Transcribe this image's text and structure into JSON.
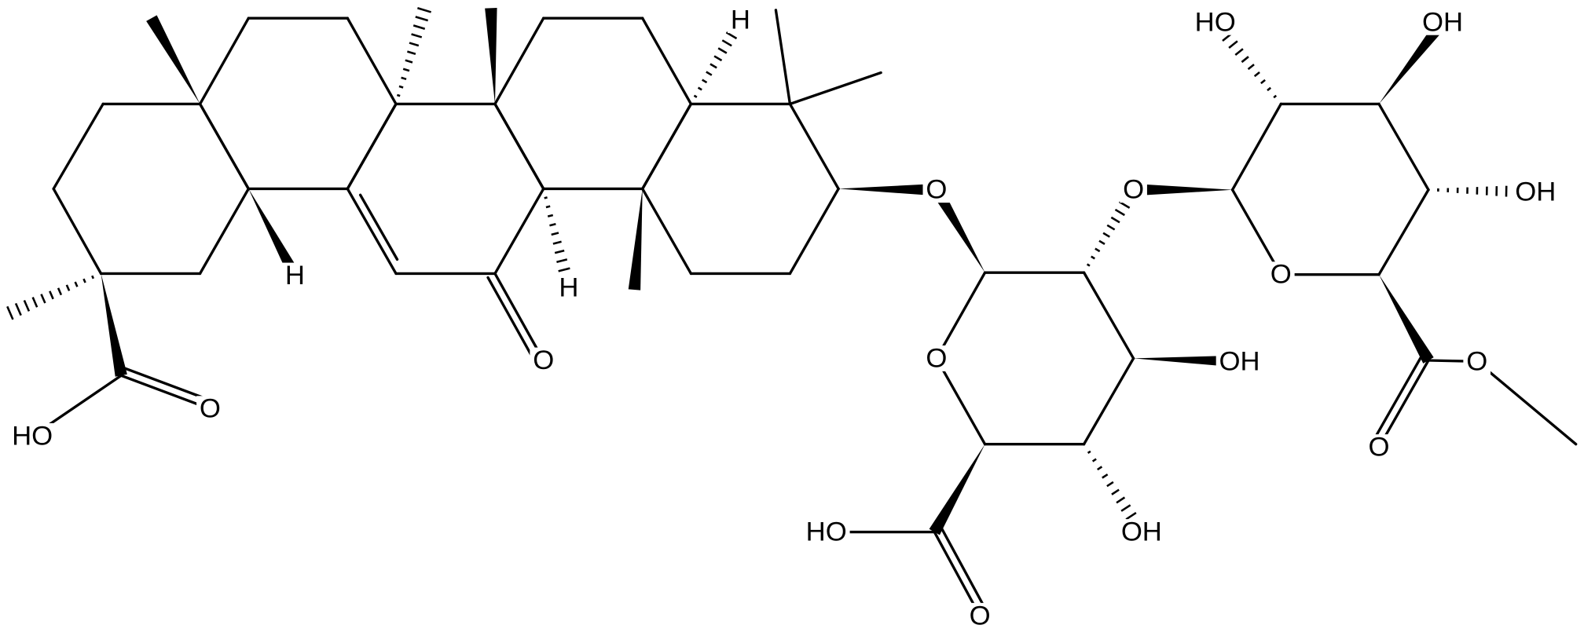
{
  "nodes": [
    {
      "label": "HO"
    },
    {
      "label": "O"
    },
    {
      "label": "H"
    },
    {
      "label": "O"
    },
    {
      "label": "H"
    },
    {
      "label": "H"
    },
    {
      "label": "O"
    },
    {
      "label": "O"
    },
    {
      "label": "OH"
    },
    {
      "label": "OH"
    },
    {
      "label": "HO"
    },
    {
      "label": "O"
    },
    {
      "label": "O"
    },
    {
      "label": "O"
    },
    {
      "label": "HO"
    },
    {
      "label": "OH"
    },
    {
      "label": "OH"
    },
    {
      "label": "O"
    },
    {
      "label": "O"
    }
  ]
}
